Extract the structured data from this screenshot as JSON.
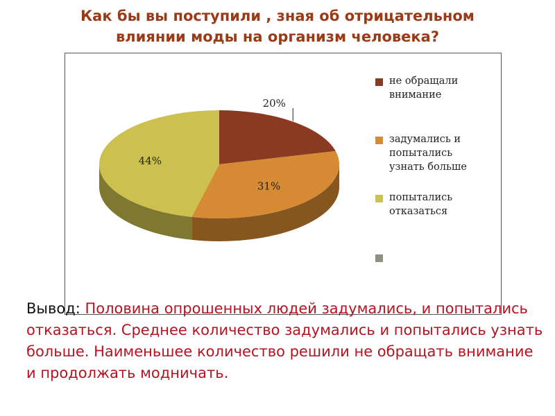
{
  "title": {
    "line1": "Как бы вы поступили , зная об отрицательном",
    "line2": "влиянии моды на организм человека?"
  },
  "chart_data": {
    "type": "pie",
    "categories": [
      "не обращали внимание",
      "задумались и попытались узнать больше",
      "попытались отказаться",
      ""
    ],
    "values": [
      20,
      31,
      44,
      0
    ],
    "labels": [
      "20%",
      "31%",
      "44%",
      ""
    ],
    "colors": [
      "#8b3a22",
      "#d68a33",
      "#ccc14e",
      "#8f8f7f"
    ],
    "legend": [
      {
        "lines": [
          "не обращали",
          "внимание"
        ]
      },
      {
        "lines": [
          "задумались и",
          "попытались",
          "узнать больше"
        ]
      },
      {
        "lines": [
          "попытались",
          "отказаться"
        ]
      },
      {
        "lines": [
          ""
        ]
      }
    ],
    "legend_position": "right"
  },
  "conclusion": {
    "lead": "Вывод: ",
    "text": "Половина опрошенных людей задумались, и попытались отказаться.  Среднее количество задумались и попытались узнать больше. Наименьшее количество  решили не обращать внимание и продолжать модничать."
  }
}
